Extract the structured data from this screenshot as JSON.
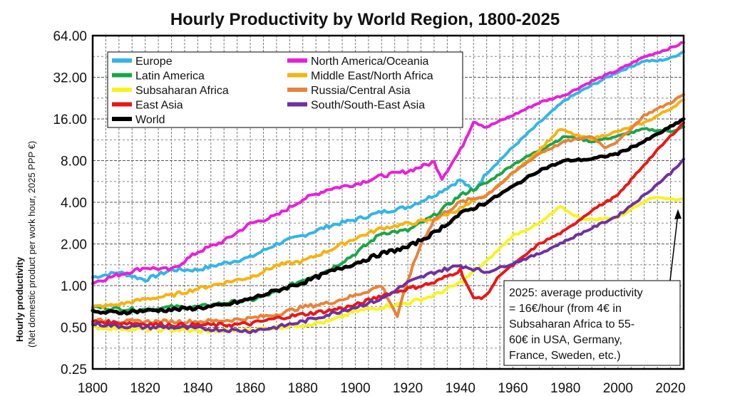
{
  "chart_data": {
    "type": "line",
    "title": "Hourly Productivity by World Region, 1800-2025",
    "ylabel": "Hourly productivity",
    "ylabel_sub": "(Net domestic product per work hour, 2025 PPP €)",
    "xlabel": "",
    "yscale": "log2",
    "xlim": [
      1800,
      2025
    ],
    "ylim": [
      0.25,
      64
    ],
    "xticks": [
      1800,
      1820,
      1840,
      1860,
      1880,
      1900,
      1920,
      1940,
      1960,
      1980,
      2000,
      2020
    ],
    "yticks": [
      0.25,
      0.5,
      1,
      2,
      4,
      8,
      16,
      32,
      64
    ],
    "ytick_labels": [
      "0.25",
      "0.50",
      "1.00",
      "2.00",
      "4.00",
      "8.00",
      "16.00",
      "32.00",
      "64.00"
    ],
    "grid": true,
    "legend_position": "top-left",
    "series": [
      {
        "name": "Europe",
        "color": "#33b5e8",
        "points": [
          [
            1800,
            1.15
          ],
          [
            1810,
            1.25
          ],
          [
            1820,
            1.1
          ],
          [
            1830,
            1.3
          ],
          [
            1840,
            1.3
          ],
          [
            1850,
            1.45
          ],
          [
            1860,
            1.6
          ],
          [
            1870,
            2.0
          ],
          [
            1880,
            2.3
          ],
          [
            1890,
            2.7
          ],
          [
            1900,
            3.0
          ],
          [
            1910,
            3.4
          ],
          [
            1920,
            3.7
          ],
          [
            1930,
            4.5
          ],
          [
            1940,
            5.8
          ],
          [
            1945,
            4.8
          ],
          [
            1950,
            6.5
          ],
          [
            1960,
            10
          ],
          [
            1970,
            15
          ],
          [
            1980,
            22
          ],
          [
            1990,
            28
          ],
          [
            2000,
            35
          ],
          [
            2010,
            42
          ],
          [
            2015,
            42
          ],
          [
            2020,
            44
          ],
          [
            2025,
            49
          ]
        ]
      },
      {
        "name": "North America/Oceania",
        "color": "#e820d8",
        "points": [
          [
            1800,
            1.05
          ],
          [
            1810,
            1.2
          ],
          [
            1820,
            1.35
          ],
          [
            1830,
            1.3
          ],
          [
            1840,
            1.75
          ],
          [
            1850,
            2.1
          ],
          [
            1860,
            2.8
          ],
          [
            1870,
            3.2
          ],
          [
            1880,
            4.2
          ],
          [
            1890,
            5.0
          ],
          [
            1900,
            5.4
          ],
          [
            1910,
            6.2
          ],
          [
            1920,
            6.7
          ],
          [
            1930,
            7.8
          ],
          [
            1933,
            6.0
          ],
          [
            1940,
            9.5
          ],
          [
            1945,
            15.5
          ],
          [
            1950,
            14
          ],
          [
            1960,
            17
          ],
          [
            1970,
            21
          ],
          [
            1980,
            24
          ],
          [
            1990,
            30
          ],
          [
            2000,
            36
          ],
          [
            2010,
            45
          ],
          [
            2020,
            52
          ],
          [
            2025,
            57
          ]
        ]
      },
      {
        "name": "Latin America",
        "color": "#1aa54a",
        "points": [
          [
            1800,
            0.7
          ],
          [
            1810,
            0.68
          ],
          [
            1820,
            0.67
          ],
          [
            1830,
            0.7
          ],
          [
            1840,
            0.7
          ],
          [
            1850,
            0.75
          ],
          [
            1860,
            0.78
          ],
          [
            1870,
            0.9
          ],
          [
            1880,
            1.1
          ],
          [
            1890,
            1.3
          ],
          [
            1900,
            1.7
          ],
          [
            1910,
            2.4
          ],
          [
            1920,
            2.5
          ],
          [
            1930,
            3.2
          ],
          [
            1940,
            4.5
          ],
          [
            1950,
            5.5
          ],
          [
            1960,
            7.5
          ],
          [
            1970,
            9.5
          ],
          [
            1980,
            12
          ],
          [
            1990,
            11
          ],
          [
            2000,
            12
          ],
          [
            2010,
            13.5
          ],
          [
            2020,
            13
          ],
          [
            2025,
            14
          ]
        ]
      },
      {
        "name": "Middle East/North Africa",
        "color": "#f5b312",
        "points": [
          [
            1800,
            0.7
          ],
          [
            1810,
            0.73
          ],
          [
            1820,
            0.8
          ],
          [
            1830,
            0.85
          ],
          [
            1840,
            0.95
          ],
          [
            1850,
            1.05
          ],
          [
            1860,
            1.15
          ],
          [
            1870,
            1.4
          ],
          [
            1880,
            1.5
          ],
          [
            1890,
            1.8
          ],
          [
            1900,
            2.2
          ],
          [
            1910,
            2.6
          ],
          [
            1920,
            2.8
          ],
          [
            1930,
            3.0
          ],
          [
            1940,
            3.6
          ],
          [
            1950,
            4.5
          ],
          [
            1960,
            6.5
          ],
          [
            1970,
            9.5
          ],
          [
            1978,
            13.5
          ],
          [
            1985,
            12
          ],
          [
            1990,
            11.5
          ],
          [
            2000,
            13
          ],
          [
            2010,
            15
          ],
          [
            2020,
            19
          ],
          [
            2025,
            22
          ]
        ]
      },
      {
        "name": "Subsaharan Africa",
        "color": "#f5f51e",
        "points": [
          [
            1800,
            0.5
          ],
          [
            1810,
            0.49
          ],
          [
            1820,
            0.48
          ],
          [
            1830,
            0.48
          ],
          [
            1840,
            0.47
          ],
          [
            1850,
            0.47
          ],
          [
            1860,
            0.48
          ],
          [
            1870,
            0.5
          ],
          [
            1880,
            0.52
          ],
          [
            1890,
            0.55
          ],
          [
            1900,
            0.65
          ],
          [
            1910,
            0.7
          ],
          [
            1920,
            0.75
          ],
          [
            1930,
            0.85
          ],
          [
            1940,
            1.05
          ],
          [
            1950,
            1.5
          ],
          [
            1960,
            2.3
          ],
          [
            1970,
            2.8
          ],
          [
            1978,
            3.7
          ],
          [
            1985,
            3.1
          ],
          [
            1990,
            3.0
          ],
          [
            2000,
            3.1
          ],
          [
            2010,
            4.1
          ],
          [
            2015,
            4.4
          ],
          [
            2020,
            4.2
          ],
          [
            2025,
            4.2
          ]
        ]
      },
      {
        "name": "Russia/Central Asia",
        "color": "#e8833a",
        "points": [
          [
            1800,
            0.56
          ],
          [
            1810,
            0.55
          ],
          [
            1820,
            0.55
          ],
          [
            1830,
            0.55
          ],
          [
            1840,
            0.55
          ],
          [
            1850,
            0.56
          ],
          [
            1860,
            0.58
          ],
          [
            1870,
            0.62
          ],
          [
            1880,
            0.7
          ],
          [
            1890,
            0.75
          ],
          [
            1900,
            0.85
          ],
          [
            1910,
            1.0
          ],
          [
            1916,
            0.6
          ],
          [
            1920,
            1.1
          ],
          [
            1925,
            2.0
          ],
          [
            1930,
            3.0
          ],
          [
            1940,
            4.0
          ],
          [
            1950,
            4.5
          ],
          [
            1960,
            6.5
          ],
          [
            1970,
            9.0
          ],
          [
            1980,
            11
          ],
          [
            1990,
            12
          ],
          [
            1995,
            10
          ],
          [
            2000,
            11
          ],
          [
            2010,
            17
          ],
          [
            2020,
            21
          ],
          [
            2025,
            24
          ]
        ]
      },
      {
        "name": "East Asia",
        "color": "#e81818",
        "points": [
          [
            1800,
            0.55
          ],
          [
            1810,
            0.54
          ],
          [
            1820,
            0.53
          ],
          [
            1830,
            0.52
          ],
          [
            1840,
            0.52
          ],
          [
            1850,
            0.52
          ],
          [
            1860,
            0.53
          ],
          [
            1870,
            0.58
          ],
          [
            1880,
            0.62
          ],
          [
            1890,
            0.66
          ],
          [
            1900,
            0.72
          ],
          [
            1910,
            0.85
          ],
          [
            1920,
            0.95
          ],
          [
            1930,
            1.05
          ],
          [
            1940,
            1.3
          ],
          [
            1945,
            0.8
          ],
          [
            1950,
            0.85
          ],
          [
            1955,
            1.2
          ],
          [
            1960,
            1.4
          ],
          [
            1970,
            2.0
          ],
          [
            1980,
            2.5
          ],
          [
            1990,
            3.5
          ],
          [
            2000,
            4.5
          ],
          [
            2010,
            7.5
          ],
          [
            2020,
            12
          ],
          [
            2025,
            15
          ]
        ]
      },
      {
        "name": "South/South-East Asia",
        "color": "#7030a0",
        "points": [
          [
            1800,
            0.53
          ],
          [
            1810,
            0.51
          ],
          [
            1820,
            0.5
          ],
          [
            1830,
            0.5
          ],
          [
            1840,
            0.49
          ],
          [
            1850,
            0.48
          ],
          [
            1860,
            0.47
          ],
          [
            1870,
            0.5
          ],
          [
            1880,
            0.55
          ],
          [
            1890,
            0.62
          ],
          [
            1900,
            0.7
          ],
          [
            1910,
            0.8
          ],
          [
            1920,
            1.05
          ],
          [
            1930,
            1.25
          ],
          [
            1940,
            1.4
          ],
          [
            1950,
            1.25
          ],
          [
            1960,
            1.45
          ],
          [
            1970,
            1.7
          ],
          [
            1980,
            2.1
          ],
          [
            1990,
            2.6
          ],
          [
            2000,
            3.2
          ],
          [
            2010,
            4.5
          ],
          [
            2020,
            6.5
          ],
          [
            2025,
            8.2
          ]
        ]
      },
      {
        "name": "World",
        "color": "#000000",
        "points": [
          [
            1800,
            0.64
          ],
          [
            1810,
            0.64
          ],
          [
            1820,
            0.66
          ],
          [
            1830,
            0.67
          ],
          [
            1840,
            0.69
          ],
          [
            1850,
            0.72
          ],
          [
            1860,
            0.8
          ],
          [
            1870,
            0.92
          ],
          [
            1880,
            1.05
          ],
          [
            1890,
            1.25
          ],
          [
            1900,
            1.45
          ],
          [
            1910,
            1.7
          ],
          [
            1920,
            1.9
          ],
          [
            1930,
            2.4
          ],
          [
            1940,
            3.3
          ],
          [
            1950,
            4.0
          ],
          [
            1960,
            5.2
          ],
          [
            1970,
            6.8
          ],
          [
            1980,
            8.0
          ],
          [
            1990,
            8.2
          ],
          [
            2000,
            9.0
          ],
          [
            2010,
            11
          ],
          [
            2020,
            14
          ],
          [
            2025,
            16
          ]
        ]
      }
    ],
    "annotation": {
      "lines": [
        "2025: average productivity",
        "= 16€/hour (from 4€ in",
        "Subsaharan Africa to 55-",
        "60€ in USA, Germany,",
        "France, Sweden, etc.)"
      ],
      "arrow_to": [
        2025,
        4.2
      ]
    }
  }
}
